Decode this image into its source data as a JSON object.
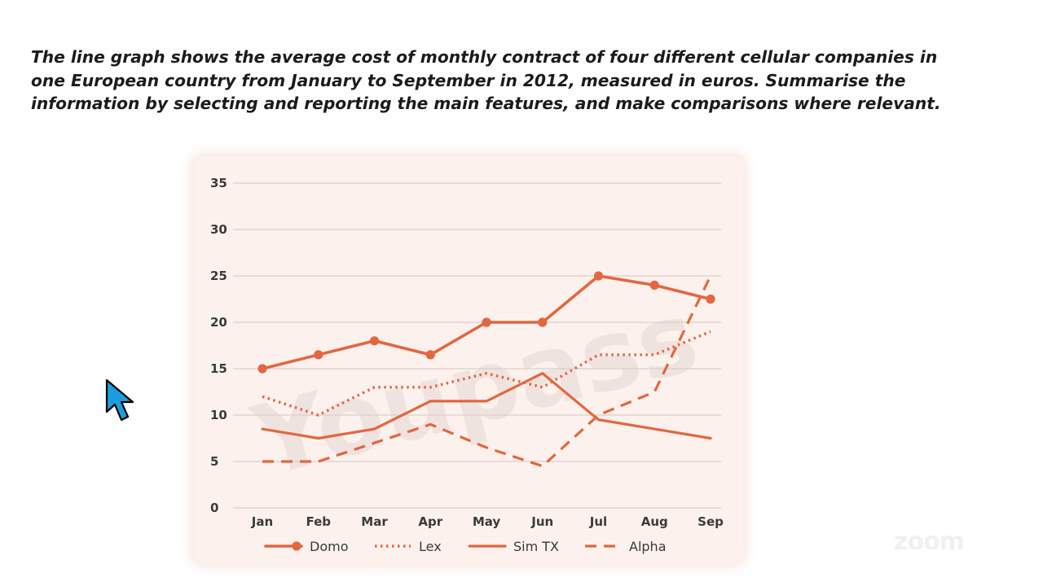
{
  "prompt": "The line graph shows the average cost of monthly contract of four different cellular companies in one European country from January to September in 2012, measured in euros. Summarise the information by selecting and reporting the main features, and make comparisons where relevant.",
  "colors": {
    "series": "#e2673f",
    "grid": "#d9cfcc",
    "card": "#fdf1ee",
    "text": "#3a3a3a",
    "cursor": "#1a9ee0"
  },
  "watermark": "Youpass",
  "zoom_mark": "zoom",
  "chart_data": {
    "type": "line",
    "title": "",
    "xlabel": "",
    "ylabel": "",
    "categories": [
      "Jan",
      "Feb",
      "Mar",
      "Apr",
      "May",
      "Jun",
      "Jul",
      "Aug",
      "Sep"
    ],
    "ylim": [
      0,
      35
    ],
    "yticks": [
      0,
      5,
      10,
      15,
      20,
      25,
      30,
      35
    ],
    "grid": true,
    "legend_position": "bottom",
    "series": [
      {
        "name": "Domo",
        "style": "solid-markers",
        "values": [
          15,
          16.5,
          18,
          16.5,
          20,
          20,
          25,
          24,
          22.5
        ]
      },
      {
        "name": "Lex",
        "style": "dotted",
        "values": [
          12,
          10,
          13,
          13,
          14.5,
          13,
          16.5,
          16.5,
          19
        ]
      },
      {
        "name": "Sim TX",
        "style": "solid",
        "values": [
          8.5,
          7.5,
          8.5,
          11.5,
          11.5,
          14.5,
          9.5,
          8.5,
          7.5
        ]
      },
      {
        "name": "Alpha",
        "style": "dashed",
        "values": [
          5,
          5,
          7,
          9,
          6.5,
          4.5,
          10,
          12.5,
          25
        ]
      }
    ]
  }
}
